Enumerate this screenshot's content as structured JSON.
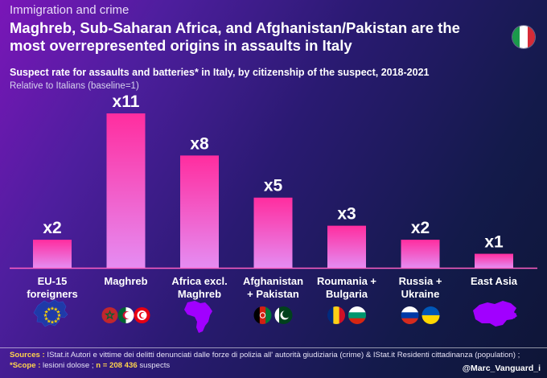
{
  "header": {
    "kicker": "Immigration and crime",
    "title": "Maghreb, Sub-Saharan Africa, and Afghanistan/Pakistan are the most overrepresented origins in assaults in Italy",
    "subtitle": "Suspect rate for assaults and batteries* in Italy, by citizenship of the suspect, 2018-2021",
    "note": "Relative to Italians (baseline=1)",
    "flag_icon": "italy-flag-icon"
  },
  "chart_data": {
    "type": "bar",
    "title": "Suspect rate for assaults and batteries* in Italy, by citizenship of the suspect, 2018-2021",
    "ylabel": "Relative to Italians (baseline=1)",
    "xlabel": "",
    "categories": [
      "EU-15 foreigners",
      "Maghreb",
      "Africa excl. Maghreb",
      "Afghanistan + Pakistan",
      "Roumania + Bulgaria",
      "Russia + Ukraine",
      "East Asia"
    ],
    "label_lines": [
      [
        "EU-15",
        "foreigners"
      ],
      [
        "Maghreb"
      ],
      [
        "Africa excl.",
        "Maghreb"
      ],
      [
        "Afghanistan",
        "+ Pakistan"
      ],
      [
        "Roumania +",
        "Bulgaria"
      ],
      [
        "Russia +",
        "Ukraine"
      ],
      [
        "East Asia"
      ]
    ],
    "values": [
      2,
      11,
      8,
      5,
      3,
      2,
      1
    ],
    "data_labels": [
      "x2",
      "x11",
      "x8",
      "x5",
      "x3",
      "x2",
      "x1"
    ],
    "ylim": [
      0,
      11
    ],
    "grid": false,
    "legend": "none",
    "icons": [
      [
        "eu-flag-icon"
      ],
      [
        "morocco-flag-icon",
        "algeria-flag-icon",
        "tunisia-flag-icon"
      ],
      [
        "africa-map-icon"
      ],
      [
        "afghanistan-flag-icon",
        "pakistan-flag-icon"
      ],
      [
        "romania-flag-icon",
        "bulgaria-flag-icon"
      ],
      [
        "russia-flag-icon",
        "ukraine-flag-icon"
      ],
      [
        "east-asia-map-icon"
      ]
    ],
    "bar_gradient": [
      "#f08cf0",
      "#ff2d9f"
    ],
    "baseline_color": "#ff5fc4"
  },
  "footer": {
    "sources_label": "Sources :",
    "sources_text": " IStat.it Autori e vittime dei delitti denunciati dalle forze di polizia all' autorità giudiziaria (crime) & IStat.it Residenti cittadinanza (population) ; ",
    "scope_label": "*Scope :",
    "scope_text": " lesioni dolose ; ",
    "n_label": "n = 208 436",
    "n_text": " suspects",
    "handle": "@Marc_Vanguard_i"
  }
}
